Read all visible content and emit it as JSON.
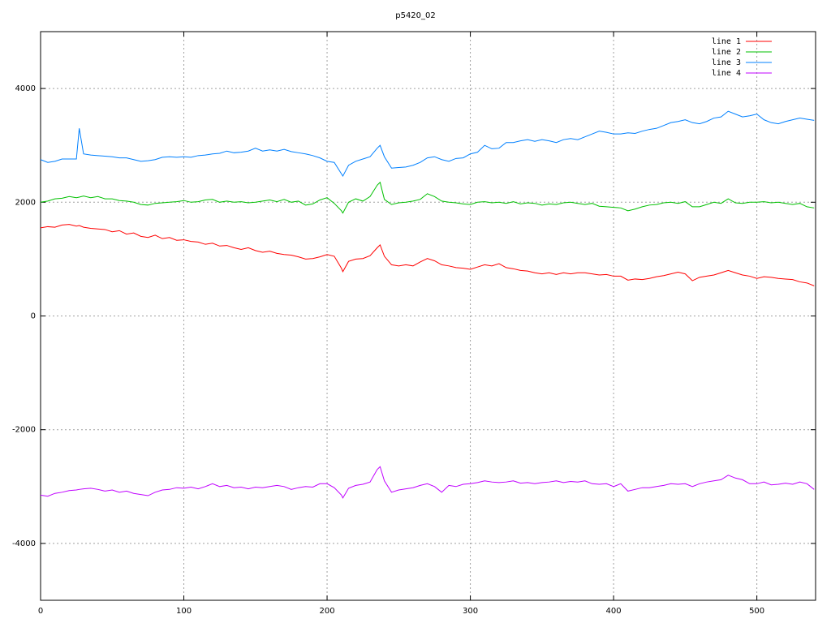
{
  "chart_data": {
    "type": "line",
    "title": "p5420_02",
    "x": [
      0,
      5,
      10,
      15,
      20,
      25,
      27,
      30,
      35,
      40,
      45,
      50,
      55,
      60,
      65,
      70,
      75,
      80,
      85,
      90,
      95,
      100,
      105,
      110,
      115,
      120,
      125,
      130,
      135,
      140,
      145,
      150,
      155,
      160,
      165,
      170,
      175,
      180,
      185,
      190,
      195,
      200,
      205,
      210,
      211,
      215,
      220,
      225,
      230,
      235,
      237,
      240,
      245,
      250,
      255,
      260,
      265,
      270,
      275,
      280,
      285,
      290,
      295,
      300,
      305,
      310,
      315,
      320,
      325,
      330,
      335,
      340,
      345,
      350,
      355,
      360,
      365,
      370,
      375,
      380,
      385,
      390,
      395,
      400,
      405,
      410,
      415,
      420,
      425,
      430,
      435,
      440,
      445,
      450,
      455,
      460,
      465,
      470,
      475,
      480,
      485,
      490,
      495,
      500,
      505,
      510,
      515,
      520,
      525,
      530,
      535,
      540
    ],
    "series": [
      {
        "name": "line 1",
        "color": "#ff0000",
        "values": [
          1550,
          1570,
          1560,
          1600,
          1610,
          1580,
          1590,
          1560,
          1540,
          1530,
          1520,
          1480,
          1500,
          1440,
          1460,
          1400,
          1380,
          1420,
          1360,
          1380,
          1330,
          1340,
          1310,
          1300,
          1260,
          1280,
          1230,
          1240,
          1200,
          1170,
          1200,
          1150,
          1120,
          1140,
          1100,
          1080,
          1070,
          1040,
          1000,
          1010,
          1040,
          1080,
          1050,
          840,
          780,
          960,
          1000,
          1010,
          1060,
          1200,
          1250,
          1050,
          900,
          880,
          900,
          880,
          950,
          1010,
          970,
          900,
          880,
          850,
          840,
          820,
          860,
          900,
          880,
          920,
          850,
          830,
          800,
          790,
          760,
          740,
          760,
          730,
          760,
          740,
          760,
          760,
          740,
          720,
          730,
          700,
          700,
          630,
          650,
          640,
          660,
          690,
          710,
          740,
          770,
          740,
          620,
          680,
          700,
          720,
          760,
          800,
          760,
          720,
          700,
          660,
          690,
          680,
          660,
          650,
          640,
          600,
          580,
          530
        ]
      },
      {
        "name": "line 2",
        "color": "#00c000",
        "values": [
          2000,
          2020,
          2060,
          2070,
          2100,
          2080,
          2090,
          2110,
          2080,
          2100,
          2060,
          2060,
          2030,
          2020,
          2000,
          1960,
          1950,
          1980,
          1990,
          2000,
          2010,
          2030,
          2000,
          2010,
          2040,
          2050,
          2000,
          2020,
          2000,
          2010,
          1990,
          2000,
          2020,
          2040,
          2010,
          2050,
          2000,
          2020,
          1950,
          1970,
          2040,
          2080,
          1980,
          1850,
          1810,
          2000,
          2060,
          2020,
          2100,
          2300,
          2350,
          2050,
          1960,
          1990,
          2000,
          2020,
          2050,
          2150,
          2100,
          2020,
          2000,
          1990,
          1970,
          1960,
          2000,
          2010,
          1990,
          2000,
          1980,
          2010,
          1970,
          1990,
          1980,
          1950,
          1970,
          1960,
          1990,
          2000,
          1980,
          1960,
          1980,
          1930,
          1920,
          1910,
          1900,
          1850,
          1880,
          1920,
          1950,
          1960,
          1990,
          2000,
          1980,
          2010,
          1920,
          1920,
          1960,
          2000,
          1980,
          2060,
          1990,
          1980,
          2000,
          2000,
          2010,
          1990,
          2000,
          1980,
          1960,
          1980,
          1920,
          1900
        ]
      },
      {
        "name": "line 3",
        "color": "#0080ff",
        "values": [
          2750,
          2700,
          2720,
          2760,
          2760,
          2760,
          3300,
          2850,
          2830,
          2820,
          2810,
          2800,
          2780,
          2780,
          2750,
          2720,
          2730,
          2750,
          2790,
          2800,
          2790,
          2800,
          2790,
          2820,
          2830,
          2850,
          2860,
          2900,
          2870,
          2880,
          2900,
          2950,
          2900,
          2920,
          2900,
          2930,
          2890,
          2870,
          2850,
          2820,
          2780,
          2720,
          2700,
          2500,
          2460,
          2650,
          2720,
          2760,
          2800,
          2950,
          3000,
          2800,
          2600,
          2610,
          2620,
          2650,
          2700,
          2780,
          2800,
          2750,
          2720,
          2770,
          2780,
          2850,
          2880,
          3000,
          2940,
          2950,
          3050,
          3050,
          3080,
          3100,
          3070,
          3100,
          3080,
          3050,
          3100,
          3120,
          3100,
          3150,
          3200,
          3250,
          3230,
          3200,
          3200,
          3220,
          3210,
          3250,
          3280,
          3300,
          3350,
          3400,
          3420,
          3450,
          3400,
          3380,
          3420,
          3480,
          3500,
          3600,
          3550,
          3500,
          3520,
          3550,
          3450,
          3400,
          3380,
          3420,
          3450,
          3480,
          3460,
          3440
        ]
      },
      {
        "name": "line 4",
        "color": "#c000ff",
        "values": [
          -3150,
          -3170,
          -3120,
          -3100,
          -3070,
          -3060,
          -3050,
          -3040,
          -3030,
          -3050,
          -3080,
          -3060,
          -3100,
          -3080,
          -3120,
          -3140,
          -3160,
          -3100,
          -3060,
          -3050,
          -3020,
          -3030,
          -3010,
          -3040,
          -3000,
          -2950,
          -3000,
          -2980,
          -3020,
          -3010,
          -3040,
          -3010,
          -3020,
          -3000,
          -2980,
          -3000,
          -3050,
          -3020,
          -3000,
          -3010,
          -2950,
          -2950,
          -3020,
          -3150,
          -3200,
          -3030,
          -2980,
          -2960,
          -2920,
          -2700,
          -2650,
          -2900,
          -3100,
          -3060,
          -3040,
          -3020,
          -2980,
          -2950,
          -3000,
          -3100,
          -2980,
          -3000,
          -2960,
          -2950,
          -2930,
          -2900,
          -2920,
          -2930,
          -2920,
          -2900,
          -2940,
          -2930,
          -2950,
          -2930,
          -2920,
          -2900,
          -2930,
          -2910,
          -2920,
          -2900,
          -2950,
          -2960,
          -2950,
          -3000,
          -2950,
          -3080,
          -3050,
          -3020,
          -3020,
          -3000,
          -2980,
          -2950,
          -2960,
          -2950,
          -3000,
          -2950,
          -2920,
          -2900,
          -2880,
          -2800,
          -2850,
          -2880,
          -2950,
          -2950,
          -2920,
          -2970,
          -2960,
          -2940,
          -2960,
          -2920,
          -2950,
          -3050
        ]
      }
    ],
    "xlim": [
      0,
      541
    ],
    "ylim": [
      -5000,
      5000
    ],
    "xticks": [
      0,
      100,
      200,
      300,
      400,
      500
    ],
    "yticks": [
      -4000,
      -2000,
      0,
      2000,
      4000
    ],
    "grid": true,
    "legend": "top-right"
  }
}
